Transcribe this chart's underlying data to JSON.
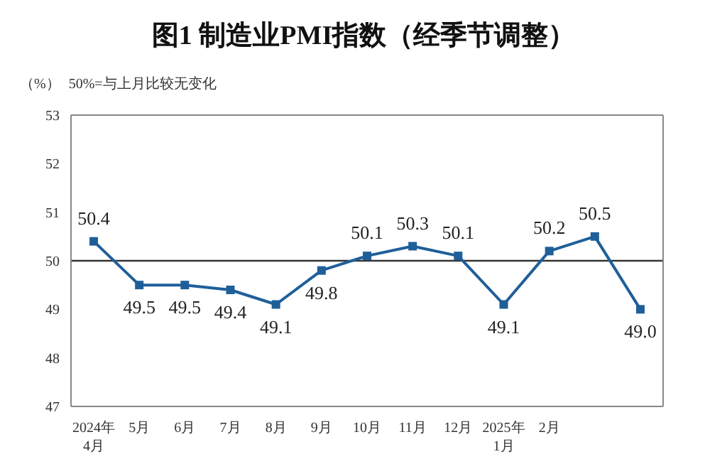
{
  "chart_data": {
    "type": "line",
    "title": "图1  制造业PMI指数（经季节调整）",
    "ylabel": "（%）",
    "annotations": [
      "50%=与上月比较无变化"
    ],
    "categories": [
      "2024年\n4月",
      "5月",
      "6月",
      "7月",
      "8月",
      "9月",
      "10月",
      "11月",
      "12月",
      "2025年\n1月",
      "2月",
      null,
      null
    ],
    "series": [
      {
        "color": "#1f5f99",
        "values": [
          50.4,
          49.5,
          49.5,
          49.4,
          49.1,
          49.8,
          50.1,
          50.3,
          50.1,
          49.1,
          50.2,
          50.5,
          49.0
        ],
        "value_labels": [
          "50.4",
          "49.5",
          "49.5",
          "49.4",
          "49.1",
          "49.8",
          "50.1",
          "50.3",
          "50.1",
          "49.1",
          "50.2",
          "50.5",
          "49.0"
        ]
      }
    ],
    "ylim": [
      47,
      53
    ],
    "yticks": [
      47,
      48,
      49,
      50,
      51,
      52,
      53
    ],
    "marker": "square",
    "line_style": "solid",
    "grid": false,
    "ref_lines": [
      {
        "axis": "y",
        "value": 50,
        "color": "#333333"
      }
    ]
  }
}
